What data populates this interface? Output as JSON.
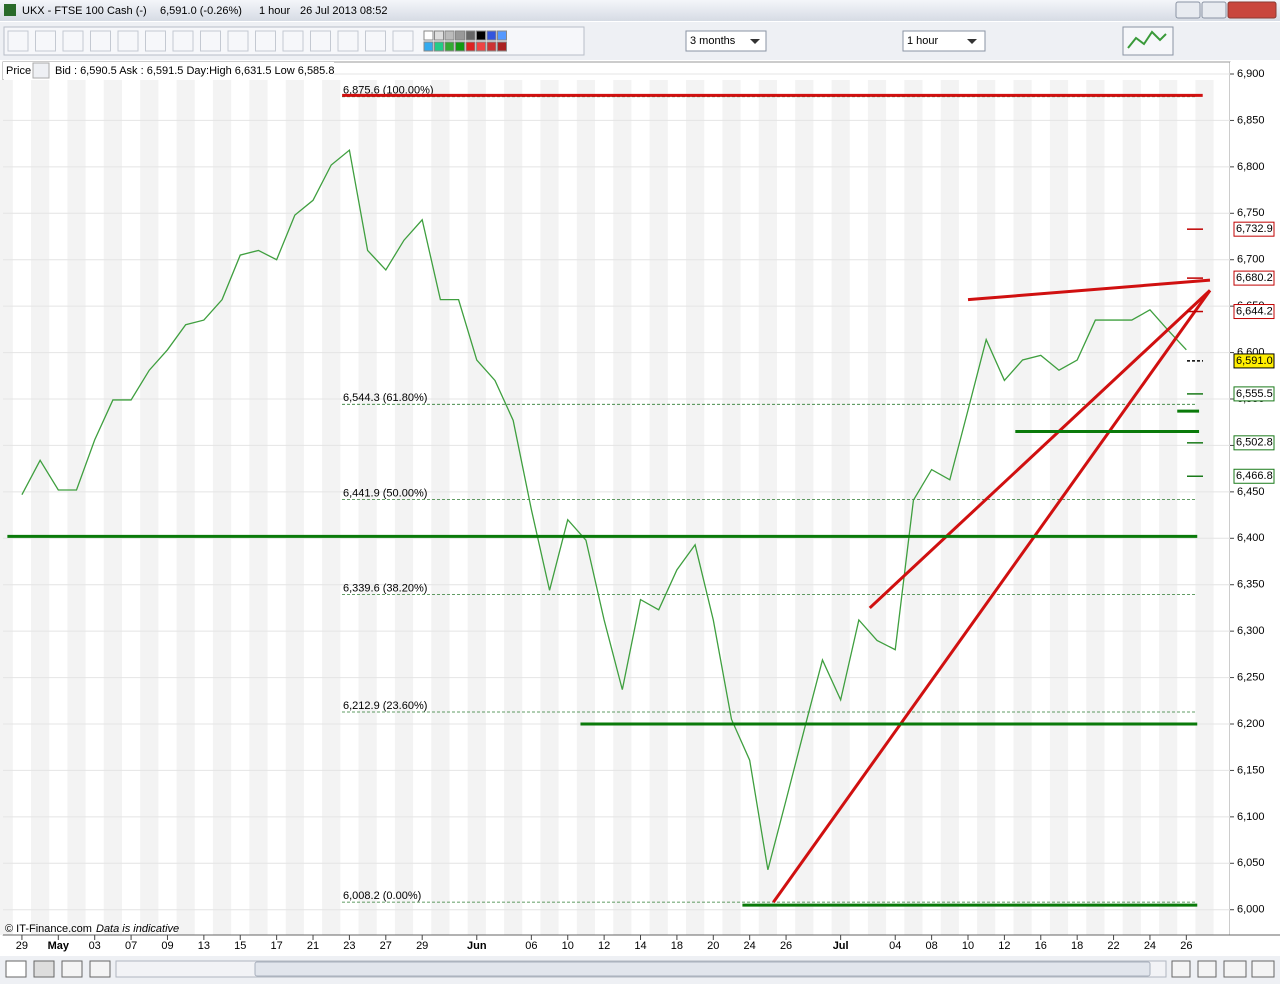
{
  "window": {
    "symbol": "UKX - FTSE 100 Cash (-)",
    "quote": "6,591.0 (-0.26%)",
    "interval": "1 hour",
    "timestamp": "26 Jul 2013 08:52"
  },
  "toolbar": {
    "period": "3 months",
    "timeframe": "1 hour"
  },
  "info_bar": {
    "label": "Price",
    "text": "Bid : 6,590.5 Ask : 6,591.5 Day:High 6,631.5 Low 6,585.8"
  },
  "footer": {
    "copyright": "© IT-Finance.com",
    "note": "Data is indicative"
  },
  "chart_data": {
    "type": "line",
    "x": [
      0,
      1,
      2,
      3,
      4,
      5,
      6,
      7,
      8,
      9,
      10,
      11,
      12,
      13,
      14,
      15,
      16,
      17,
      18,
      19,
      20,
      21,
      22,
      23,
      24,
      25,
      26,
      27,
      28,
      29,
      30,
      31,
      32,
      33,
      34,
      35,
      36,
      37,
      38,
      39,
      40,
      41,
      42,
      43,
      44,
      45,
      46,
      47,
      48,
      49,
      50,
      51,
      52,
      53,
      54,
      55,
      56,
      57,
      58,
      59,
      60,
      61,
      62,
      63,
      64
    ],
    "values": [
      6447,
      6484,
      6452,
      6452,
      6506,
      6549,
      6549,
      6581,
      6603,
      6630,
      6635,
      6657,
      6705,
      6710,
      6700,
      6748,
      6764,
      6802,
      6818,
      6710,
      6689,
      6721,
      6743,
      6657,
      6657,
      6592,
      6570,
      6527,
      6431,
      6344,
      6420,
      6398,
      6312,
      6237,
      6334,
      6323,
      6366,
      6393,
      6312,
      6205,
      6161,
      6043,
      6118,
      6194,
      6269,
      6226,
      6312,
      6290,
      6280,
      6441,
      6474,
      6463,
      6538,
      6614,
      6570,
      6592,
      6597,
      6581,
      6592,
      6635,
      6635,
      6635,
      6646,
      6624,
      6603
    ],
    "color": "#3f9f3f",
    "xlim": [
      -1.04,
      66.4
    ],
    "ylim": [
      5976,
      6909.7
    ],
    "xticks": [
      {
        "value": 0,
        "label": "29"
      },
      {
        "value": 2,
        "label": "May"
      },
      {
        "value": 4,
        "label": "03"
      },
      {
        "value": 6,
        "label": "07"
      },
      {
        "value": 8,
        "label": "09"
      },
      {
        "value": 10,
        "label": "13"
      },
      {
        "value": 12,
        "label": "15"
      },
      {
        "value": 14,
        "label": "17"
      },
      {
        "value": 16,
        "label": "21"
      },
      {
        "value": 18,
        "label": "23"
      },
      {
        "value": 20,
        "label": "27"
      },
      {
        "value": 22,
        "label": "29"
      },
      {
        "value": 25,
        "label": "Jun"
      },
      {
        "value": 28,
        "label": "06"
      },
      {
        "value": 30,
        "label": "10"
      },
      {
        "value": 32,
        "label": "12"
      },
      {
        "value": 34,
        "label": "14"
      },
      {
        "value": 36,
        "label": "18"
      },
      {
        "value": 38,
        "label": "20"
      },
      {
        "value": 40,
        "label": "24"
      },
      {
        "value": 42,
        "label": "26"
      },
      {
        "value": 45,
        "label": "Jul"
      },
      {
        "value": 48,
        "label": "04"
      },
      {
        "value": 50,
        "label": "08"
      },
      {
        "value": 52,
        "label": "10"
      },
      {
        "value": 54,
        "label": "12"
      },
      {
        "value": 56,
        "label": "16"
      },
      {
        "value": 58,
        "label": "18"
      },
      {
        "value": 60,
        "label": "22"
      },
      {
        "value": 62,
        "label": "24"
      },
      {
        "value": 64,
        "label": "26"
      }
    ],
    "yticks": [
      {
        "value": 6000,
        "label": "6,000"
      },
      {
        "value": 6050,
        "label": "6,050"
      },
      {
        "value": 6100,
        "label": "6,100"
      },
      {
        "value": 6150,
        "label": "6,150"
      },
      {
        "value": 6200,
        "label": "6,200"
      },
      {
        "value": 6250,
        "label": "6,250"
      },
      {
        "value": 6300,
        "label": "6,300"
      },
      {
        "value": 6350,
        "label": "6,350"
      },
      {
        "value": 6400,
        "label": "6,400"
      },
      {
        "value": 6450,
        "label": "6,450"
      },
      {
        "value": 6500,
        "label": "6,500"
      },
      {
        "value": 6550,
        "label": "6,550"
      },
      {
        "value": 6600,
        "label": "6,600"
      },
      {
        "value": 6650,
        "label": "6,650"
      },
      {
        "value": 6700,
        "label": "6,700"
      },
      {
        "value": 6750,
        "label": "6,750"
      },
      {
        "value": 6800,
        "label": "6,800"
      },
      {
        "value": 6850,
        "label": "6,850"
      },
      {
        "value": 6900,
        "label": "6,900"
      }
    ],
    "grid": true,
    "fib_levels": [
      {
        "value": 6875.6,
        "label": "6,875.6 (100.00%)"
      },
      {
        "value": 6544.3,
        "label": "6,544.3 (61.80%)"
      },
      {
        "value": 6441.9,
        "label": "6,441.9 (50.00%)"
      },
      {
        "value": 6339.6,
        "label": "6,339.6 (38.20%)"
      },
      {
        "value": 6212.9,
        "label": "6,212.9 (23.60%)"
      },
      {
        "value": 6008.2,
        "label": "6,008.2 (0.00%)"
      }
    ],
    "lines": [
      {
        "color": "#d01010",
        "x": [
          17.6,
          64.9
        ],
        "y": [
          6877,
          6877
        ]
      },
      {
        "color": "#d01010",
        "x": [
          52,
          65.3
        ],
        "y": [
          6657,
          6678
        ]
      },
      {
        "color": "#d01010",
        "x": [
          46.6,
          65.3
        ],
        "y": [
          6325,
          6667
        ]
      },
      {
        "color": "#d01010",
        "x": [
          41.3,
          65.3
        ],
        "y": [
          6008,
          6667
        ]
      },
      {
        "color": "#0a7a0a",
        "x": [
          -0.8,
          64.6
        ],
        "y": [
          6402,
          6402
        ]
      },
      {
        "color": "#0a7a0a",
        "x": [
          30.7,
          64.6
        ],
        "y": [
          6200,
          6200
        ]
      },
      {
        "color": "#0a7a0a",
        "x": [
          54.6,
          64.7
        ],
        "y": [
          6515,
          6515
        ]
      },
      {
        "color": "#0a7a0a",
        "x": [
          63.5,
          64.7
        ],
        "y": [
          6537,
          6537
        ]
      },
      {
        "color": "#0a7a0a",
        "x": [
          39.6,
          64.6
        ],
        "y": [
          6005,
          6005
        ]
      }
    ],
    "price_markers": [
      {
        "value": 6732.9,
        "label": "6,732.9",
        "color": "#c00000"
      },
      {
        "value": 6680.2,
        "label": "6,680.2",
        "color": "#c00000"
      },
      {
        "value": 6644.2,
        "label": "6,644.2",
        "color": "#c00000"
      },
      {
        "value": 6591.0,
        "label": "6,591.0",
        "color": "#000000"
      },
      {
        "value": 6555.5,
        "label": "6,555.5",
        "color": "#1a7a1a"
      },
      {
        "value": 6502.8,
        "label": "6,502.8",
        "color": "#1a7a1a"
      },
      {
        "value": 6466.8,
        "label": "6,466.8",
        "color": "#1a7a1a"
      }
    ]
  }
}
